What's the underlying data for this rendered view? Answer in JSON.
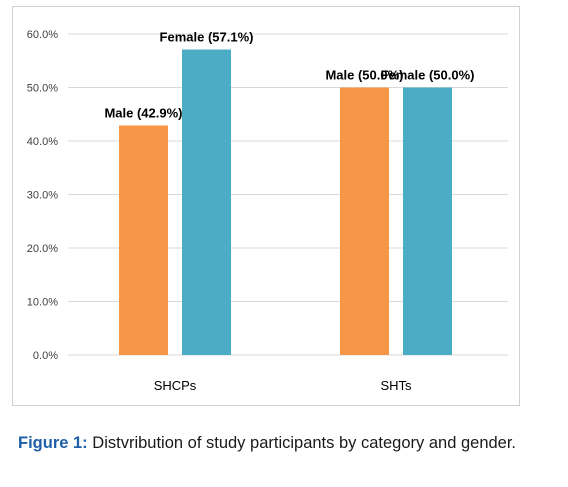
{
  "chart_data": {
    "type": "bar",
    "categories": [
      "SHCPs",
      "SHTs"
    ],
    "series": [
      {
        "name": "Male",
        "values": [
          42.9,
          50.0
        ],
        "color": "#f79646",
        "labels": [
          "Male (42.9%)",
          "Male (50.0%)"
        ]
      },
      {
        "name": "Female",
        "values": [
          57.1,
          50.0
        ],
        "color": "#4bacc6",
        "labels": [
          "Female (57.1%)",
          "Female (50.0%)"
        ]
      }
    ],
    "ylim": [
      0,
      60
    ],
    "yticks": [
      "0.0%",
      "10.0%",
      "20.0%",
      "30.0%",
      "40.0%",
      "50.0%",
      "60.0%"
    ],
    "grid": true,
    "legend": "none"
  },
  "caption": {
    "prefix": "Figure 1:",
    "text": "Distvribution of study participants by category and gender."
  }
}
